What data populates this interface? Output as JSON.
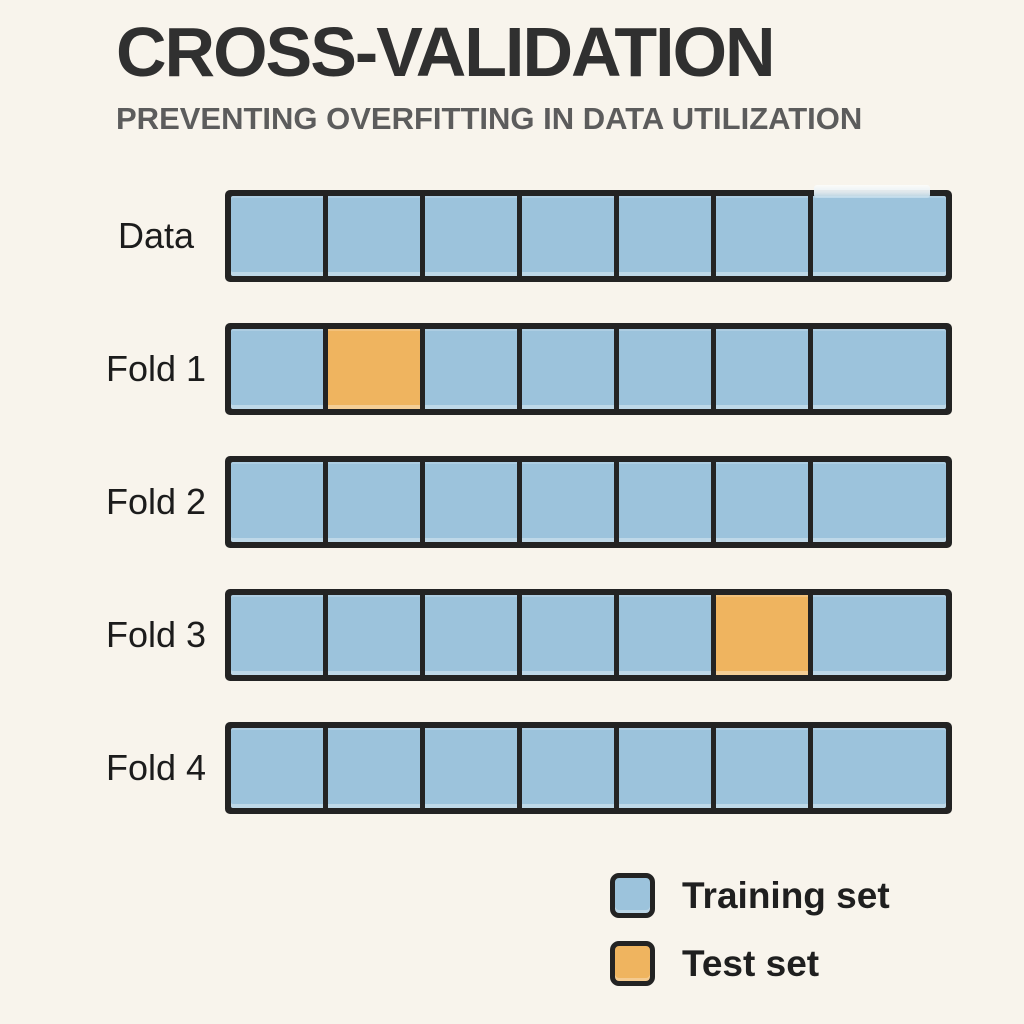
{
  "header": {
    "title": "CROSS-VALIDATION",
    "subtitle": "PREVENTING OVERFITTING IN DATA UTILIZATION"
  },
  "colors": {
    "background": "#F8F4EC",
    "training": "#9CC3DC",
    "test": "#EFB45F",
    "border": "#232323",
    "title": "#303030",
    "subtitle": "#5C5C5C",
    "label": "#1C1C1C"
  },
  "rows": [
    {
      "label": "Data",
      "cells": [
        "training",
        "training",
        "training",
        "training",
        "training",
        "training",
        "training"
      ]
    },
    {
      "label": "Fold 1",
      "cells": [
        "training",
        "test",
        "training",
        "training",
        "training",
        "training",
        "training"
      ]
    },
    {
      "label": "Fold 2",
      "cells": [
        "training",
        "training",
        "training",
        "training",
        "training",
        "training",
        "training"
      ]
    },
    {
      "label": "Fold 3",
      "cells": [
        "training",
        "training",
        "training",
        "training",
        "training",
        "test",
        "training"
      ]
    },
    {
      "label": "Fold 4",
      "cells": [
        "training",
        "training",
        "training",
        "training",
        "training",
        "training",
        "training"
      ]
    }
  ],
  "legend": {
    "items": [
      {
        "type": "training",
        "label": "Training set"
      },
      {
        "type": "test",
        "label": "Test set"
      }
    ]
  }
}
